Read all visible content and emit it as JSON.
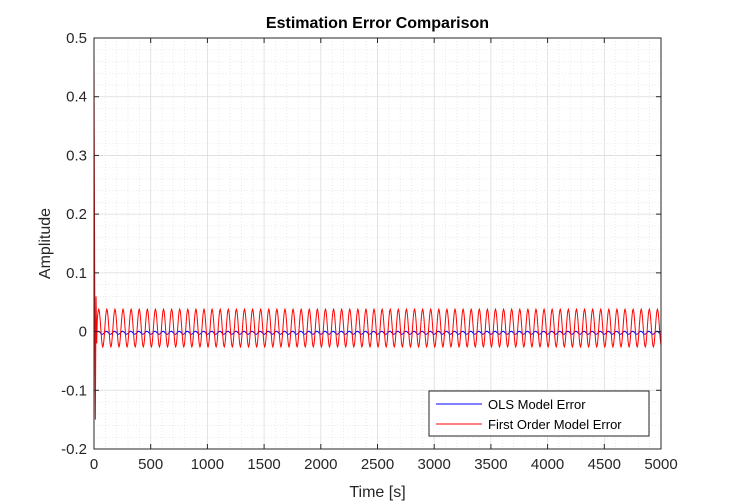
{
  "chart_data": {
    "type": "line",
    "title": "Estimation Error Comparison",
    "xlabel": "Time [s]",
    "ylabel": "Amplitude",
    "xlim": [
      0,
      5000
    ],
    "ylim": [
      -0.2,
      0.5
    ],
    "xticks": [
      0,
      500,
      1000,
      1500,
      2000,
      2500,
      3000,
      3500,
      4000,
      4500,
      5000
    ],
    "yticks": [
      -0.2,
      -0.1,
      0,
      0.1,
      0.2,
      0.3,
      0.4,
      0.5
    ],
    "xtick_labels": [
      "0",
      "500",
      "1000",
      "1500",
      "2000",
      "2500",
      "3000",
      "3500",
      "4000",
      "4500",
      "5000"
    ],
    "ytick_labels": [
      "-0.2",
      "-0.1",
      "0",
      "0.1",
      "0.2",
      "0.3",
      "0.4",
      "0.5"
    ],
    "grid": true,
    "minor_grid": true,
    "legend_position": "bottom-right",
    "series": [
      {
        "name": "OLS Model Error",
        "color": "#0000ff",
        "offset": -0.002,
        "amplitude": 0.0025,
        "period": 71.4,
        "x": [
          0,
          5,
          10,
          15,
          20
        ],
        "y": [
          0.0,
          -0.02,
          0.01,
          -0.004,
          -0.002
        ]
      },
      {
        "name": "First Order Model Error",
        "color": "#ff0000",
        "offset": 0.006,
        "amplitude": 0.032,
        "period": 71.4,
        "x": [
          0,
          6,
          12,
          18,
          24
        ],
        "y": [
          0.47,
          0.1,
          -0.15,
          0.06,
          -0.02
        ]
      }
    ]
  }
}
